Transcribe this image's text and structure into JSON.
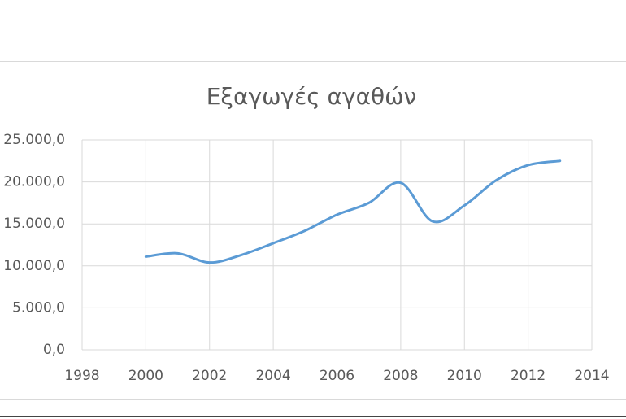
{
  "chart_data": {
    "type": "line",
    "title": "Εξαγωγές αγαθών",
    "x": [
      2000,
      2001,
      2002,
      2003,
      2004,
      2005,
      2006,
      2007,
      2008,
      2009,
      2010,
      2011,
      2012,
      2013
    ],
    "series": [
      {
        "name": "Εξαγωγές αγαθών",
        "color": "#5b9bd5",
        "values": [
          11100,
          11500,
          10400,
          11300,
          12700,
          14200,
          16100,
          17500,
          19900,
          15300,
          17200,
          20200,
          22000,
          22500
        ]
      }
    ],
    "xlim": [
      1998,
      2014
    ],
    "xticks": [
      1998,
      2000,
      2002,
      2004,
      2006,
      2008,
      2010,
      2012,
      2014
    ],
    "ylim": [
      0,
      25000
    ],
    "yticks": [
      {
        "value": 0,
        "label": "0,0"
      },
      {
        "value": 5000,
        "label": "5.000,0"
      },
      {
        "value": 10000,
        "label": "10.000,0"
      },
      {
        "value": 15000,
        "label": "15.000,0"
      },
      {
        "value": 20000,
        "label": "20.000,0"
      },
      {
        "value": 25000,
        "label": "25.000,0"
      }
    ],
    "grid": true,
    "smooth": true
  }
}
